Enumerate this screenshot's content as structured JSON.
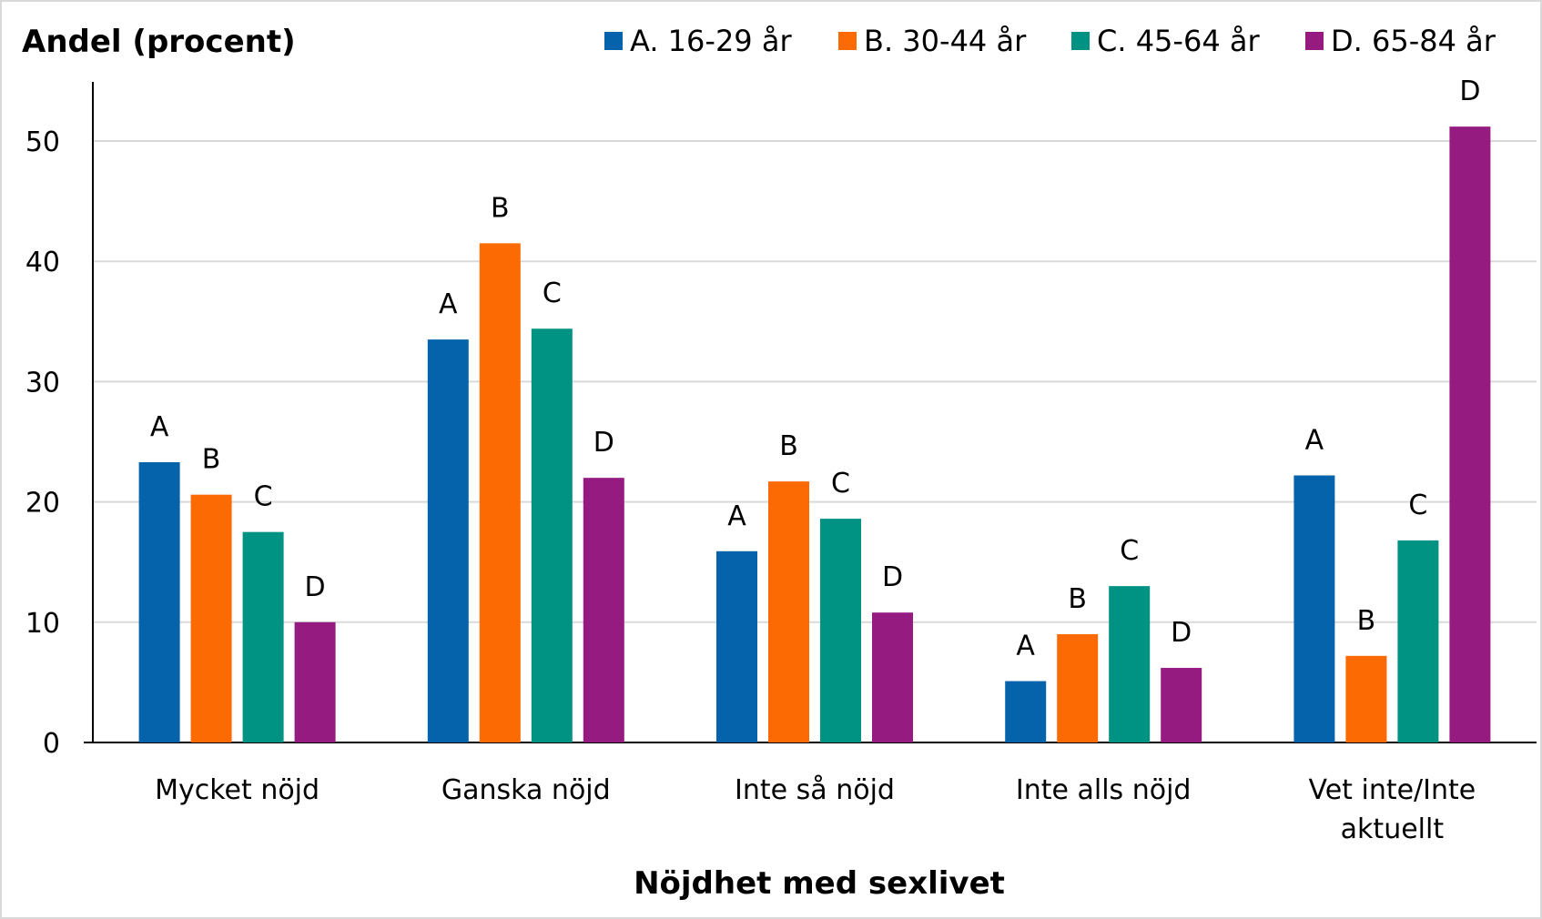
{
  "chart_data": {
    "type": "bar",
    "ylabel": "Andel (procent)",
    "xlabel": "Nöjdhet med sexlivet",
    "categories": [
      [
        "Mycket nöjd"
      ],
      [
        "Ganska nöjd"
      ],
      [
        "Inte så nöjd"
      ],
      [
        "Inte alls nöjd"
      ],
      [
        "Vet inte/Inte",
        "aktuellt"
      ]
    ],
    "ylim": [
      0,
      55
    ],
    "yticks": [
      0,
      10,
      20,
      30,
      40,
      50
    ],
    "grid": true,
    "legend_position": "top",
    "series": [
      {
        "name": "A. 16-29 år",
        "bar_label": "A",
        "color": "#0563ac",
        "values": [
          23.3,
          33.5,
          15.9,
          5.1,
          22.2
        ]
      },
      {
        "name": "B. 30-44 år",
        "bar_label": "B",
        "color": "#fc6a04",
        "values": [
          20.6,
          41.5,
          21.7,
          9.0,
          7.2
        ]
      },
      {
        "name": "C. 45-64 år",
        "bar_label": "C",
        "color": "#009384",
        "values": [
          17.5,
          34.4,
          18.6,
          13.0,
          16.8
        ]
      },
      {
        "name": "D. 65-84 år",
        "bar_label": "D",
        "color": "#951b81",
        "values": [
          10.0,
          22.0,
          10.8,
          6.2,
          51.2
        ]
      }
    ]
  }
}
